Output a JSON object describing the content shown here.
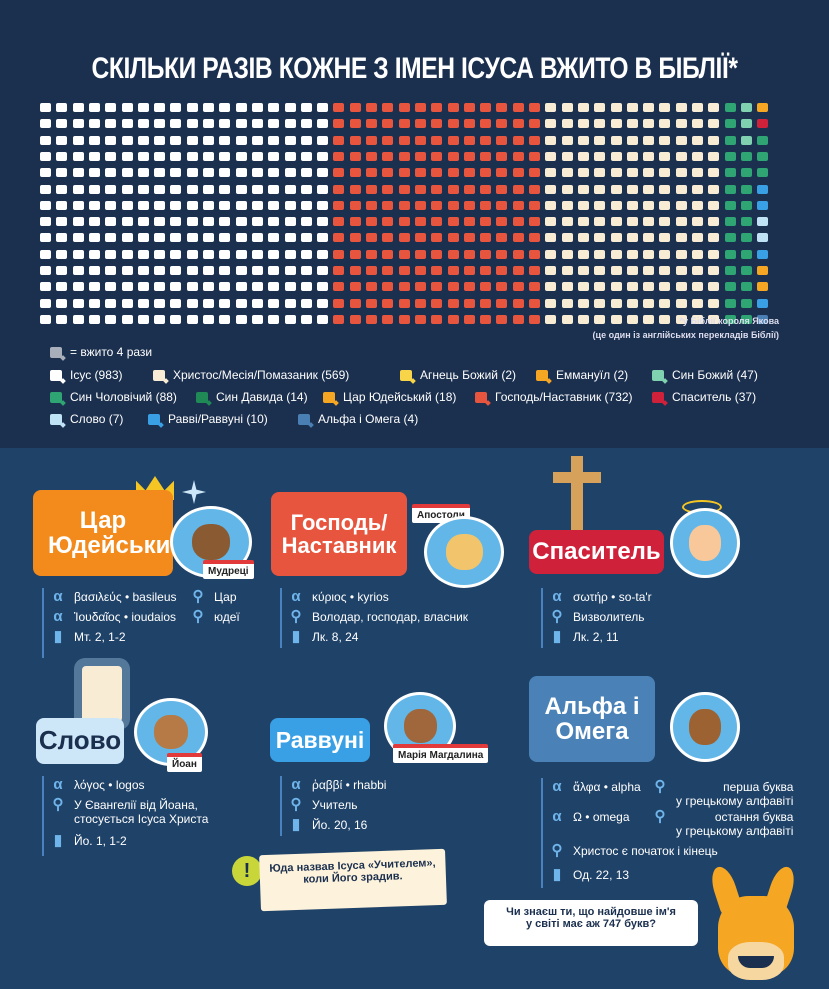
{
  "title": "СКІЛЬКИ РАЗІВ КОЖНЕ З ІМЕН ІСУСА ВЖИТО В БІБЛІЇ*",
  "footnote": {
    "line1": "*у Біблії короля Якова",
    "line2": "(це один із англійських перекладів Біблії)"
  },
  "unit_note": "= вжито 4 рази",
  "colors": {
    "top_bg": "#1b2f4e",
    "bottom_bg": "#1f4268",
    "red": "#e8553f",
    "white": "#ffffff",
    "cream": "#f8ecd4",
    "green": "#2ea572",
    "orange": "#f5a623",
    "yellow": "#f8d548",
    "darkred": "#d0213b",
    "lightgreen": "#7fd1b0",
    "lightblue": "#bfe3f5",
    "blue": "#3aa0e5",
    "steel": "#4a7fb3"
  },
  "legend": [
    {
      "label": "Ісус (983)",
      "color": "#ffffff"
    },
    {
      "label": "Христос/Месія/Помазаник (569)",
      "color": "#f8ecd4"
    },
    {
      "label": "Агнець Божий (2)",
      "color": "#f8d548"
    },
    {
      "label": "Еммануїл (2)",
      "color": "#f5a623"
    },
    {
      "label": "Син Божий (47)",
      "color": "#7fd1b0"
    },
    {
      "label": "Син Чоловічий (88)",
      "color": "#2ea572"
    },
    {
      "label": "Син Давида (14)",
      "color": "#1f8a55"
    },
    {
      "label": "Цар Юдейський (18)",
      "color": "#f5a623"
    },
    {
      "label": "Господь/Наставник (732)",
      "color": "#e8553f"
    },
    {
      "label": "Спаситель (37)",
      "color": "#d0213b"
    },
    {
      "label": "Слово (7)",
      "color": "#bfe3f5"
    },
    {
      "label": "Раввi/Раввуні (10)",
      "color": "#3aa0e5"
    },
    {
      "label": "Альфа і Омега (4)",
      "color": "#4a7fb3"
    }
  ],
  "cards": {
    "king": {
      "title": "Цар Юдейський",
      "tag": "Мудреці",
      "greek1": "βασιλεύς • basileus",
      "greek2": "Ἰουδαῖος • ioudaios",
      "meaning1": "Цар",
      "meaning2": "юдеї",
      "ref": "Мт. 2, 1-2"
    },
    "lord": {
      "title": "Господь/ Наставник",
      "tag": "Апостоли",
      "greek": "κύριος • kyrios",
      "meaning": "Володар, господар, власник",
      "ref": "Лк. 8, 24"
    },
    "savior": {
      "title": "Спаситель",
      "greek": "σωτήρ • so-ta'r",
      "meaning": "Визволитель",
      "ref": "Лк. 2, 11"
    },
    "word": {
      "title": "Слово",
      "tag": "Йоан",
      "greek": "λόγος • logos",
      "meaning1": "У Євангелії від Йоана,",
      "meaning2": "стосується Ісуса Христа",
      "ref": "Йо. 1, 1-2"
    },
    "rabbi": {
      "title": "Раввуні",
      "tag": "Марія Магдалина",
      "greek": "ῥαββί • rhabbi",
      "meaning": "Учитель",
      "ref": "Йо. 20, 16"
    },
    "alpha": {
      "title": "Альфа і Омега",
      "greek1": "ἄλφα • alpha",
      "greek2": "Ω • omega",
      "meaning1a": "перша буква",
      "meaning1b": "у грецькому алфавіті",
      "meaning2a": "остання буква",
      "meaning2b": "у грецькому алфавіті",
      "meaning3": "Христос є початок і кінець",
      "ref": "Од. 22, 13"
    }
  },
  "note": {
    "line1": "Юда назвав Ісуса «Учителем»,",
    "line2": "коли Його зрадив."
  },
  "bubble": {
    "line1": "Чи знаєш ти, що найдовше ім'я",
    "line2": "у світі має аж 747 букв?"
  }
}
